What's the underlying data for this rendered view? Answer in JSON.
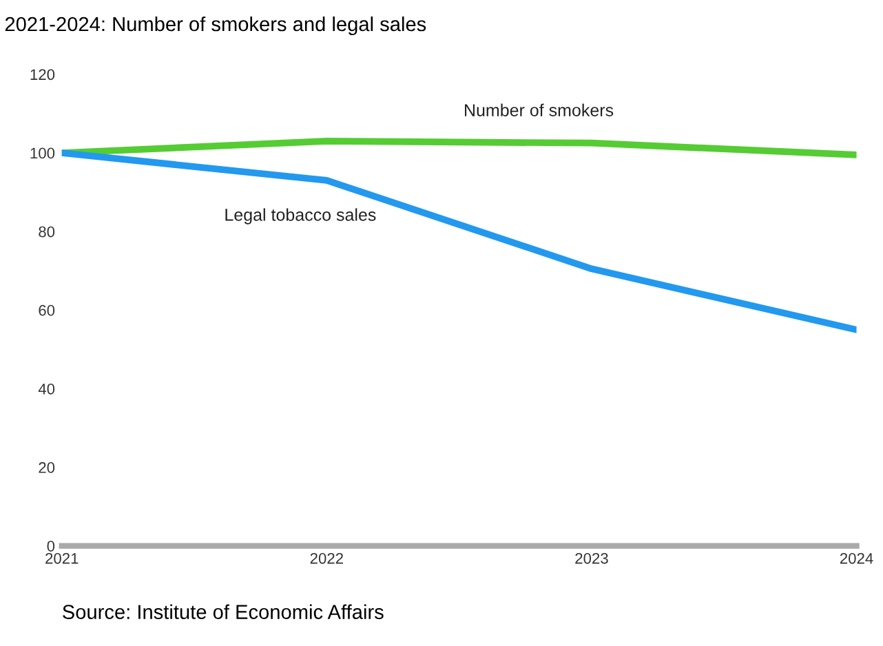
{
  "chart_data": {
    "type": "line",
    "title": "2021-2024: Number of smokers and legal sales",
    "categories": [
      "2021",
      "2022",
      "2023",
      "2024"
    ],
    "series": [
      {
        "name": "Number of smokers",
        "color": "#55cc33",
        "values": [
          100,
          103,
          102.5,
          99.5
        ]
      },
      {
        "name": "Legal tobacco sales",
        "color": "#2299ee",
        "values": [
          100,
          93,
          70.5,
          55
        ]
      }
    ],
    "ylim": [
      0,
      120
    ],
    "yticks": [
      0,
      20,
      40,
      60,
      80,
      100,
      120
    ],
    "grid": false,
    "legend": false,
    "annotations": [
      "Source: Institute of Economic Affairs"
    ]
  }
}
